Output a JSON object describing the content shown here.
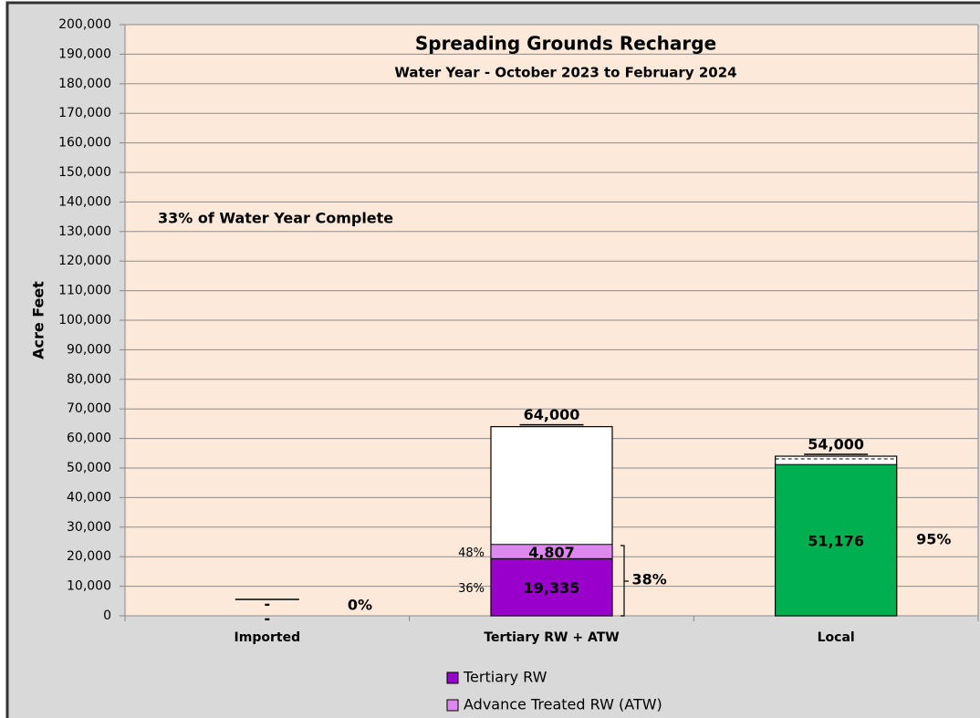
{
  "chart_data": {
    "type": "bar",
    "title": "Spreading Grounds Recharge",
    "subtitle": "Water Year - October 2023 to February 2024",
    "y_label": "Acre Feet",
    "annotation": "33% of Water Year Complete",
    "categories": [
      "Imported",
      "Tertiary RW + ATW",
      "Local"
    ],
    "series": [
      {
        "color": "#ffffff",
        "values": [
          0,
          null,
          null
        ],
        "value_labels": [
          "-",
          null,
          null
        ]
      },
      {
        "name": "Tertiary RW",
        "color": "#9900cc",
        "values": [
          null,
          19335,
          null
        ],
        "value_labels": [
          null,
          "19,335",
          null
        ],
        "share_values": [
          null,
          36,
          null
        ],
        "share_labels": [
          null,
          "36%",
          null
        ]
      },
      {
        "name": "Advance Treated RW (ATW)",
        "color": "#dd88ee",
        "values": [
          null,
          4807,
          null
        ],
        "value_labels": [
          null,
          "4,807",
          null
        ],
        "share_values": [
          null,
          48,
          null
        ],
        "share_labels": [
          null,
          "48%",
          null
        ]
      },
      {
        "color": "#00b050",
        "values": [
          null,
          null,
          51176
        ],
        "value_labels": [
          null,
          null,
          "51,176"
        ]
      }
    ],
    "targets": {
      "color": "#ffffff",
      "values": [
        0,
        64000,
        54000
      ],
      "value_labels": [
        "-",
        "64,000",
        "54,000"
      ]
    },
    "percent_of_target": {
      "values": [
        0,
        38,
        95
      ],
      "value_labels": [
        "0%",
        "38%",
        "95%"
      ]
    },
    "ylim": [
      0,
      200000
    ],
    "yticks": [
      {
        "value": 0,
        "label": "0"
      },
      {
        "value": 10000,
        "label": "10,000"
      },
      {
        "value": 20000,
        "label": "20,000"
      },
      {
        "value": 30000,
        "label": "30,000"
      },
      {
        "value": 40000,
        "label": "40,000"
      },
      {
        "value": 50000,
        "label": "50,000"
      },
      {
        "value": 60000,
        "label": "60,000"
      },
      {
        "value": 70000,
        "label": "70,000"
      },
      {
        "value": 80000,
        "label": "80,000"
      },
      {
        "value": 90000,
        "label": "90,000"
      },
      {
        "value": 100000,
        "label": "100,000"
      },
      {
        "value": 110000,
        "label": "110,000"
      },
      {
        "value": 120000,
        "label": "120,000"
      },
      {
        "value": 130000,
        "label": "130,000"
      },
      {
        "value": 140000,
        "label": "140,000"
      },
      {
        "value": 150000,
        "label": "150,000"
      },
      {
        "value": 160000,
        "label": "160,000"
      },
      {
        "value": 170000,
        "label": "170,000"
      },
      {
        "value": 180000,
        "label": "180,000"
      },
      {
        "value": 190000,
        "label": "190,000"
      },
      {
        "value": 200000,
        "label": "200,000"
      }
    ],
    "grid": true,
    "legend": "bottom"
  }
}
